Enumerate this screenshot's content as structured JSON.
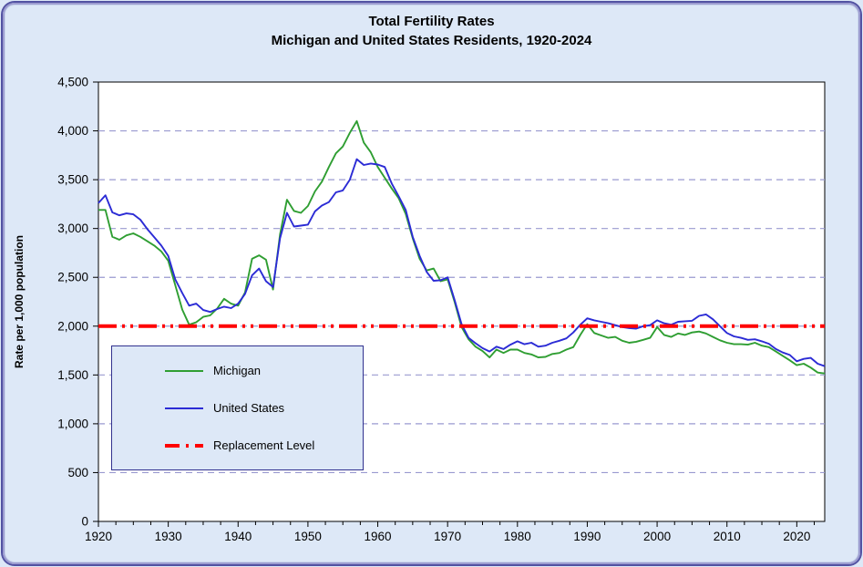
{
  "chart": {
    "title_line1": "Total Fertility Rates",
    "title_line2": "Michigan and United States Residents, 1920-2024",
    "y_axis_title": "Rate per 1,000 population"
  },
  "colors": {
    "background": "#DDE8F7",
    "plot_background": "#FFFFFF",
    "plot_border": "#000000",
    "grid": "#9A9AD0",
    "frame_border": "#5252A2",
    "legend_border": "#31318F"
  },
  "chart_data": {
    "type": "line",
    "title": "Total Fertility Rates — Michigan and United States Residents, 1920-2024",
    "xlabel": "",
    "ylabel": "Rate per 1,000 population",
    "xlim": [
      1920,
      2024
    ],
    "ylim": [
      0,
      4500
    ],
    "yticks": [
      0,
      500,
      1000,
      1500,
      2000,
      2500,
      3000,
      3500,
      4000,
      4500
    ],
    "xticks": [
      1920,
      1930,
      1940,
      1950,
      1960,
      1970,
      1980,
      1990,
      2000,
      2010,
      2020
    ],
    "minor_tick_step": 2.5,
    "grid": "horizontal dashed lines every 500",
    "legend_position": "inside lower-left",
    "x_start": 1920,
    "x_step": 1,
    "series": [
      {
        "name": "Michigan",
        "color": "#2F9E32",
        "style": "solid",
        "values": [
          3190,
          3190,
          2915,
          2885,
          2930,
          2950,
          2915,
          2870,
          2825,
          2765,
          2670,
          2420,
          2170,
          2015,
          2040,
          2095,
          2110,
          2180,
          2280,
          2230,
          2210,
          2345,
          2690,
          2725,
          2680,
          2375,
          2940,
          3295,
          3180,
          3160,
          3230,
          3380,
          3480,
          3630,
          3770,
          3840,
          3980,
          4100,
          3880,
          3780,
          3630,
          3520,
          3410,
          3310,
          3150,
          2900,
          2690,
          2570,
          2590,
          2460,
          2480,
          2250,
          1990,
          1865,
          1790,
          1745,
          1680,
          1760,
          1725,
          1760,
          1760,
          1725,
          1710,
          1680,
          1685,
          1715,
          1725,
          1760,
          1785,
          1910,
          2020,
          1930,
          1905,
          1880,
          1890,
          1850,
          1830,
          1840,
          1860,
          1880,
          1990,
          1910,
          1890,
          1925,
          1910,
          1935,
          1945,
          1925,
          1890,
          1855,
          1830,
          1815,
          1815,
          1810,
          1830,
          1800,
          1785,
          1740,
          1695,
          1650,
          1600,
          1615,
          1575,
          1525,
          1515
        ]
      },
      {
        "name": "United States",
        "color": "#2B2BD5",
        "style": "solid",
        "values": [
          3260,
          3340,
          3165,
          3135,
          3155,
          3145,
          3090,
          2995,
          2910,
          2825,
          2720,
          2480,
          2340,
          2210,
          2230,
          2165,
          2145,
          2175,
          2200,
          2185,
          2230,
          2330,
          2520,
          2590,
          2460,
          2400,
          2900,
          3160,
          3020,
          3030,
          3040,
          3175,
          3235,
          3270,
          3370,
          3390,
          3500,
          3710,
          3650,
          3665,
          3655,
          3630,
          3460,
          3330,
          3190,
          2915,
          2720,
          2555,
          2465,
          2470,
          2500,
          2270,
          2020,
          1880,
          1825,
          1775,
          1740,
          1790,
          1765,
          1810,
          1845,
          1815,
          1830,
          1790,
          1800,
          1830,
          1850,
          1875,
          1935,
          2015,
          2080,
          2060,
          2045,
          2030,
          2010,
          1990,
          1980,
          1975,
          2000,
          2010,
          2060,
          2030,
          2015,
          2045,
          2050,
          2055,
          2105,
          2120,
          2070,
          2000,
          1930,
          1895,
          1880,
          1860,
          1865,
          1845,
          1820,
          1765,
          1730,
          1705,
          1640,
          1665,
          1675,
          1615,
          1590
        ]
      },
      {
        "name": "Replacement Level",
        "color": "#FF0000",
        "style": "long-dash-dot-dot",
        "value": 2000
      }
    ]
  }
}
